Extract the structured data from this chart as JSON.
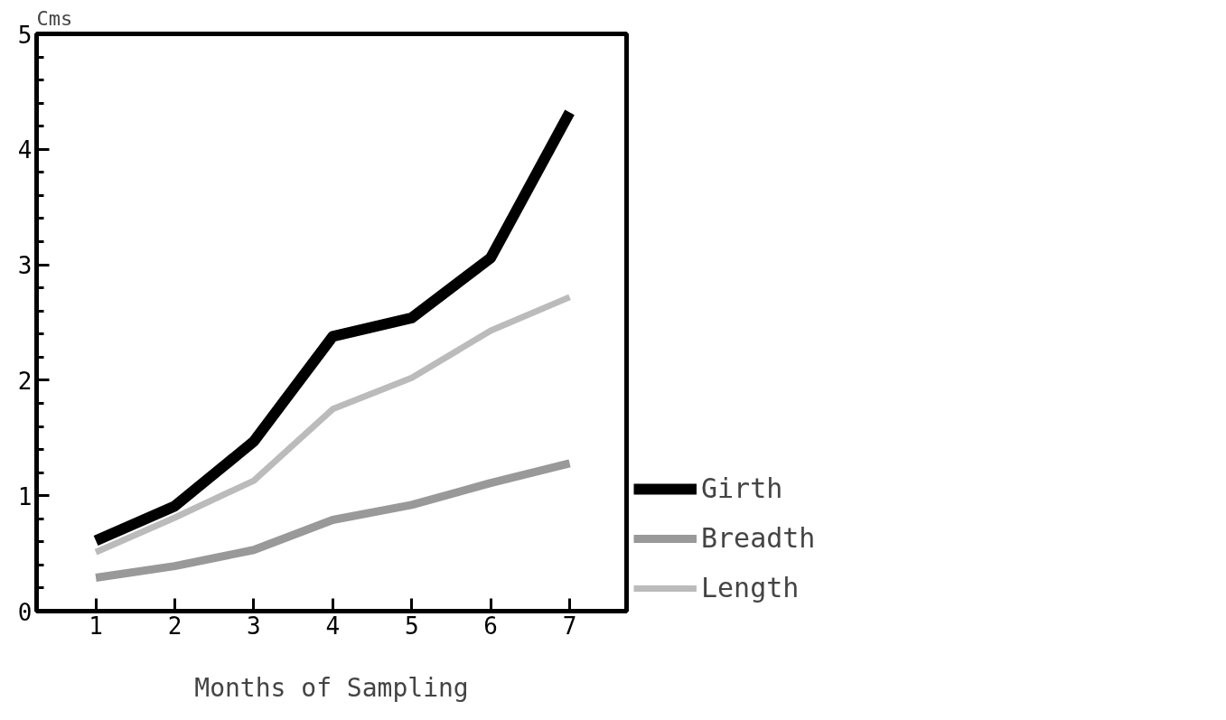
{
  "chart_data": {
    "type": "line",
    "xlabel": "Months of Sampling",
    "ylabel": "Cms",
    "x": [
      1,
      2,
      3,
      4,
      5,
      6,
      7
    ],
    "series": [
      {
        "name": "Girth",
        "color": "#000000",
        "values": [
          0.61,
          0.91,
          1.47,
          2.38,
          2.54,
          3.06,
          4.32
        ]
      },
      {
        "name": "Breadth",
        "color": "#999999",
        "values": [
          0.29,
          0.39,
          0.53,
          0.79,
          0.92,
          1.11,
          1.28
        ]
      },
      {
        "name": "Length",
        "color": "#bbbbbb",
        "values": [
          0.51,
          0.81,
          1.13,
          1.75,
          2.02,
          2.43,
          2.72
        ]
      }
    ],
    "xlim": [
      0.25,
      7.72
    ],
    "ylim": [
      0,
      5
    ],
    "xticks": [
      1,
      2,
      3,
      4,
      5,
      6,
      7
    ],
    "yticks": [
      0,
      {
        "value": 0.2,
        "label": null
      },
      {
        "value": 0.4,
        "label": null
      },
      {
        "value": 0.6,
        "label": null
      },
      {
        "value": 0.8,
        "label": null
      },
      1,
      {
        "value": 1.2,
        "label": null
      },
      {
        "value": 1.4,
        "label": null
      },
      {
        "value": 1.6,
        "label": null
      },
      {
        "value": 1.8,
        "label": null
      },
      2,
      {
        "value": 2.2,
        "label": null
      },
      {
        "value": 2.4,
        "label": null
      },
      {
        "value": 2.6,
        "label": null
      },
      {
        "value": 2.8,
        "label": null
      },
      3,
      {
        "value": 3.2,
        "label": null
      },
      {
        "value": 3.4,
        "label": null
      },
      {
        "value": 3.6,
        "label": null
      },
      {
        "value": 3.8,
        "label": null
      },
      4,
      {
        "value": 4.2,
        "label": null
      },
      {
        "value": 4.4,
        "label": null
      },
      {
        "value": 4.6,
        "label": null
      },
      {
        "value": 4.8,
        "label": null
      },
      5
    ],
    "grid": false,
    "legend": "bottom right",
    "marker": "none",
    "line_style": "solid"
  }
}
